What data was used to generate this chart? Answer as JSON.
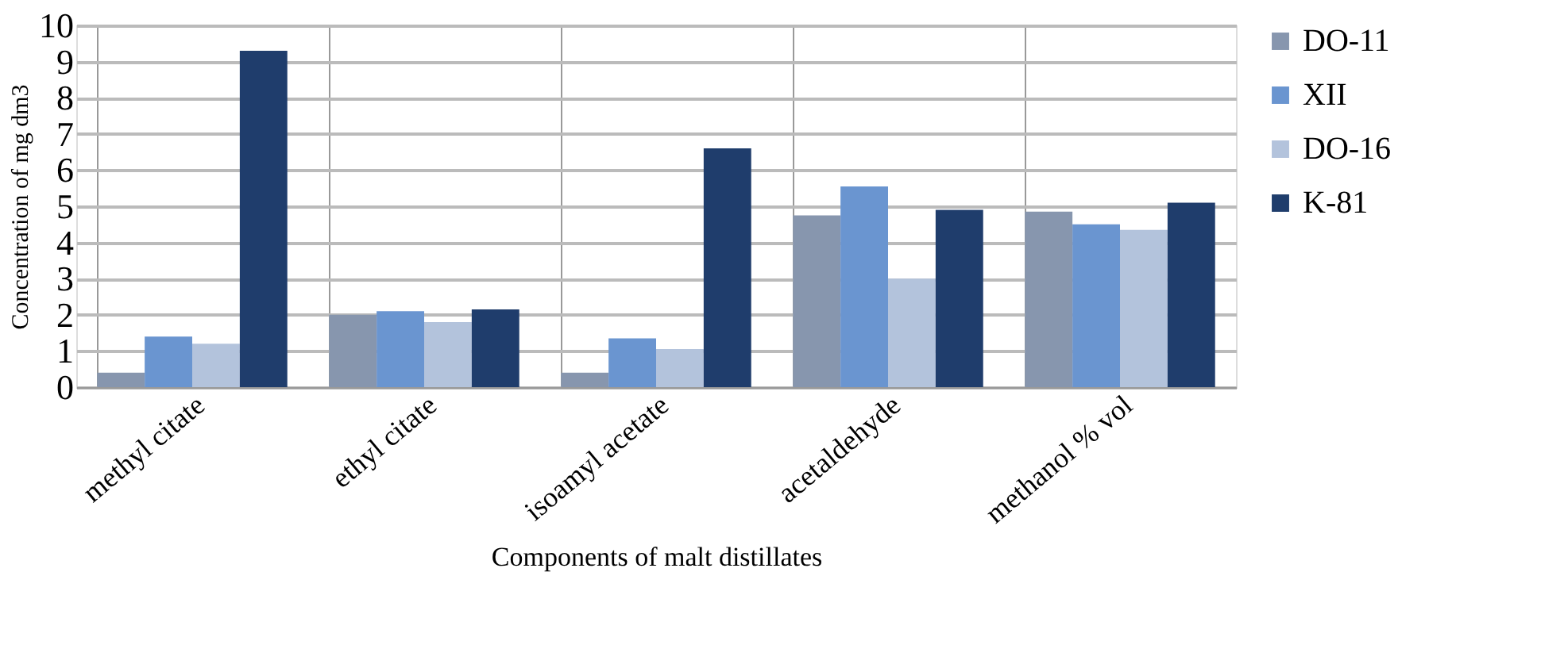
{
  "chart_data": {
    "type": "bar",
    "xlabel": "Components of malt distillates",
    "ylabel": "Concentration of mg dm3",
    "categories": [
      "methyl citate",
      "ethyl citate",
      "isoamyl acetate",
      "acetaldehyde",
      "methanol % vol"
    ],
    "series": [
      {
        "name": "DO-11",
        "color": "#8796ae",
        "values": [
          0.4,
          2.0,
          0.4,
          4.75,
          4.85
        ]
      },
      {
        "name": "XII",
        "color": "#6a95d0",
        "values": [
          1.4,
          2.1,
          1.35,
          5.55,
          4.5
        ]
      },
      {
        "name": "DO-16",
        "color": "#b3c3dc",
        "values": [
          1.2,
          1.8,
          1.05,
          3.0,
          4.35
        ]
      },
      {
        "name": "K-81",
        "color": "#1f3d6c",
        "values": [
          9.3,
          2.15,
          6.6,
          4.9,
          5.1
        ]
      }
    ],
    "ylim": [
      0,
      10
    ],
    "yticks": [
      0,
      1,
      2,
      3,
      4,
      5,
      6,
      7,
      8,
      9,
      10
    ],
    "grid": true,
    "legend": "right"
  }
}
